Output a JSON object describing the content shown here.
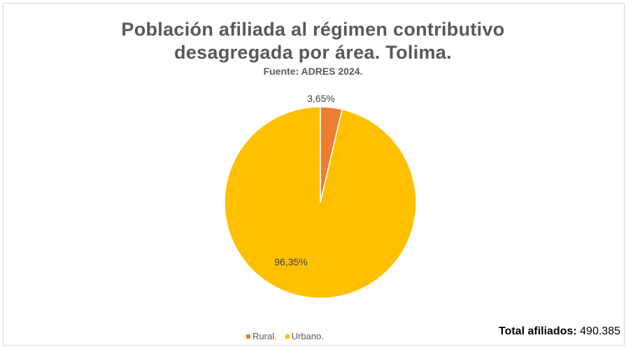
{
  "chart_data": {
    "type": "pie",
    "title_line1": "Población afiliada al régimen contributivo",
    "title_line2": "desagregada por área. Tolima.",
    "subtitle": "Fuente: ADRES 2024.",
    "categories": [
      "Rural.",
      "Urbano."
    ],
    "values": [
      3.65,
      96.35
    ],
    "labels": [
      "3,65%",
      "96,35%"
    ],
    "colors": [
      "#ed7d31",
      "#ffc000"
    ],
    "legend_position": "bottom"
  },
  "total": {
    "label": "Total afiliados:",
    "value": "490.385"
  }
}
